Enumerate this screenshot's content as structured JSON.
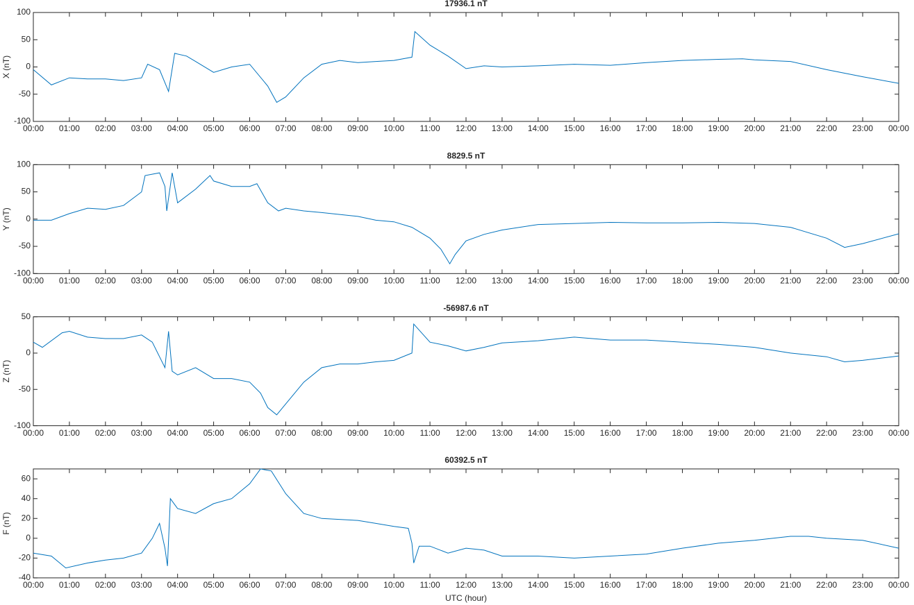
{
  "chart_data": [
    {
      "type": "line",
      "title": "17936.1 nT",
      "ylabel": "X (nT)",
      "color": "#0072bd",
      "x": [
        0,
        0.5,
        1,
        1.5,
        2,
        2.5,
        3,
        3.17,
        3.5,
        3.75,
        3.92,
        4.25,
        4.5,
        5,
        5.5,
        6,
        6.5,
        6.75,
        7,
        7.5,
        8,
        8.5,
        9,
        9.5,
        10,
        10.5,
        10.58,
        11,
        11.5,
        12,
        12.5,
        13,
        14,
        15,
        16,
        17,
        18,
        19,
        19.67,
        20,
        21,
        22,
        23,
        24
      ],
      "values": [
        -5,
        -33,
        -20,
        -22,
        -22,
        -25,
        -20,
        5,
        -5,
        -45,
        25,
        20,
        10,
        -10,
        0,
        5,
        -35,
        -65,
        -55,
        -20,
        5,
        12,
        8,
        10,
        12,
        18,
        65,
        40,
        20,
        -3,
        2,
        0,
        2,
        5,
        3,
        8,
        12,
        14,
        15,
        13,
        10,
        -5,
        -18,
        -30
      ],
      "xlim": [
        0,
        24
      ],
      "ylim": [
        -100,
        100
      ],
      "yticks": [
        -100,
        -50,
        0,
        50,
        100
      ],
      "xticks": [
        {
          "value": 0,
          "label": "00:00"
        },
        {
          "value": 1,
          "label": "01:00"
        },
        {
          "value": 2,
          "label": "02:00"
        },
        {
          "value": 3,
          "label": "03:00"
        },
        {
          "value": 4,
          "label": "04:00"
        },
        {
          "value": 5,
          "label": "05:00"
        },
        {
          "value": 6,
          "label": "06:00"
        },
        {
          "value": 7,
          "label": "07:00"
        },
        {
          "value": 8,
          "label": "08:00"
        },
        {
          "value": 9,
          "label": "09:00"
        },
        {
          "value": 10,
          "label": "10:00"
        },
        {
          "value": 11,
          "label": "11:00"
        },
        {
          "value": 12,
          "label": "12:00"
        },
        {
          "value": 13,
          "label": "13:00"
        },
        {
          "value": 14,
          "label": "14:00"
        },
        {
          "value": 15,
          "label": "15:00"
        },
        {
          "value": 16,
          "label": "16:00"
        },
        {
          "value": 17,
          "label": "17:00"
        },
        {
          "value": 18,
          "label": "18:00"
        },
        {
          "value": 19,
          "label": "19:00"
        },
        {
          "value": 20,
          "label": "20:00"
        },
        {
          "value": 21,
          "label": "21:00"
        },
        {
          "value": 22,
          "label": "22:00"
        },
        {
          "value": 23,
          "label": "23:00"
        },
        {
          "value": 24,
          "label": "00:00"
        }
      ]
    },
    {
      "type": "line",
      "title": "8829.5 nT",
      "ylabel": "Y (nT)",
      "color": "#0072bd",
      "x": [
        0,
        0.5,
        1,
        1.5,
        2,
        2.5,
        3,
        3.1,
        3.5,
        3.65,
        3.7,
        3.85,
        4,
        4.5,
        4.9,
        5,
        5.5,
        6,
        6.2,
        6.5,
        6.8,
        7,
        7.5,
        8,
        9,
        9.5,
        10,
        10.5,
        11,
        11.3,
        11.55,
        11.7,
        12,
        12.5,
        13,
        14,
        15,
        16,
        17,
        18,
        19,
        20,
        21,
        22,
        22.5,
        23,
        24
      ],
      "values": [
        -2,
        -2,
        10,
        20,
        18,
        25,
        50,
        80,
        85,
        60,
        15,
        85,
        30,
        55,
        80,
        70,
        60,
        60,
        65,
        30,
        15,
        20,
        15,
        12,
        5,
        -2,
        -5,
        -15,
        -35,
        -55,
        -82,
        -65,
        -40,
        -28,
        -20,
        -10,
        -8,
        -6,
        -7,
        -7,
        -6,
        -8,
        -15,
        -35,
        -52,
        -45,
        -27
      ],
      "xlim": [
        0,
        24
      ],
      "ylim": [
        -100,
        100
      ],
      "yticks": [
        -100,
        -50,
        0,
        50,
        100
      ],
      "xticks": [
        {
          "value": 0,
          "label": "00:00"
        },
        {
          "value": 1,
          "label": "01:00"
        },
        {
          "value": 2,
          "label": "02:00"
        },
        {
          "value": 3,
          "label": "03:00"
        },
        {
          "value": 4,
          "label": "04:00"
        },
        {
          "value": 5,
          "label": "05:00"
        },
        {
          "value": 6,
          "label": "06:00"
        },
        {
          "value": 7,
          "label": "07:00"
        },
        {
          "value": 8,
          "label": "08:00"
        },
        {
          "value": 9,
          "label": "09:00"
        },
        {
          "value": 10,
          "label": "10:00"
        },
        {
          "value": 11,
          "label": "11:00"
        },
        {
          "value": 12,
          "label": "12:00"
        },
        {
          "value": 13,
          "label": "13:00"
        },
        {
          "value": 14,
          "label": "14:00"
        },
        {
          "value": 15,
          "label": "15:00"
        },
        {
          "value": 16,
          "label": "16:00"
        },
        {
          "value": 17,
          "label": "17:00"
        },
        {
          "value": 18,
          "label": "18:00"
        },
        {
          "value": 19,
          "label": "19:00"
        },
        {
          "value": 20,
          "label": "20:00"
        },
        {
          "value": 21,
          "label": "21:00"
        },
        {
          "value": 22,
          "label": "22:00"
        },
        {
          "value": 23,
          "label": "23:00"
        },
        {
          "value": 24,
          "label": "00:00"
        }
      ]
    },
    {
      "type": "line",
      "title": "-56987.6 nT",
      "ylabel": "Z (nT)",
      "color": "#0072bd",
      "x": [
        0,
        0.25,
        0.8,
        1,
        1.5,
        2,
        2.5,
        3,
        3.3,
        3.5,
        3.65,
        3.75,
        3.85,
        4,
        4.5,
        5,
        5.5,
        6,
        6.3,
        6.5,
        6.75,
        7,
        7.5,
        8,
        8.5,
        9,
        9.5,
        10,
        10.5,
        10.55,
        11,
        11.5,
        12,
        12.5,
        13,
        14,
        15,
        16,
        17,
        18,
        19,
        20,
        21,
        22,
        22.5,
        23,
        24
      ],
      "values": [
        15,
        8,
        28,
        30,
        22,
        20,
        20,
        25,
        15,
        -5,
        -20,
        30,
        -25,
        -30,
        -20,
        -35,
        -35,
        -40,
        -55,
        -75,
        -85,
        -70,
        -40,
        -20,
        -15,
        -15,
        -12,
        -10,
        0,
        40,
        15,
        10,
        3,
        8,
        14,
        17,
        22,
        18,
        18,
        15,
        12,
        8,
        0,
        -5,
        -12,
        -10,
        -4
      ],
      "xlim": [
        0,
        24
      ],
      "ylim": [
        -100,
        50
      ],
      "yticks": [
        -100,
        -50,
        0,
        50
      ],
      "xticks": [
        {
          "value": 0,
          "label": "00:00"
        },
        {
          "value": 1,
          "label": "01:00"
        },
        {
          "value": 2,
          "label": "02:00"
        },
        {
          "value": 3,
          "label": "03:00"
        },
        {
          "value": 4,
          "label": "04:00"
        },
        {
          "value": 5,
          "label": "05:00"
        },
        {
          "value": 6,
          "label": "06:00"
        },
        {
          "value": 7,
          "label": "07:00"
        },
        {
          "value": 8,
          "label": "08:00"
        },
        {
          "value": 9,
          "label": "09:00"
        },
        {
          "value": 10,
          "label": "10:00"
        },
        {
          "value": 11,
          "label": "11:00"
        },
        {
          "value": 12,
          "label": "12:00"
        },
        {
          "value": 13,
          "label": "13:00"
        },
        {
          "value": 14,
          "label": "14:00"
        },
        {
          "value": 15,
          "label": "15:00"
        },
        {
          "value": 16,
          "label": "16:00"
        },
        {
          "value": 17,
          "label": "17:00"
        },
        {
          "value": 18,
          "label": "18:00"
        },
        {
          "value": 19,
          "label": "19:00"
        },
        {
          "value": 20,
          "label": "20:00"
        },
        {
          "value": 21,
          "label": "21:00"
        },
        {
          "value": 22,
          "label": "22:00"
        },
        {
          "value": 23,
          "label": "23:00"
        },
        {
          "value": 24,
          "label": "00:00"
        }
      ]
    },
    {
      "type": "line",
      "title": "60392.5 nT",
      "ylabel": "F (nT)",
      "xlabel": "UTC (hour)",
      "color": "#0072bd",
      "x": [
        0,
        0.5,
        0.9,
        1.5,
        2,
        2.5,
        3,
        3.3,
        3.5,
        3.65,
        3.72,
        3.8,
        4,
        4.5,
        5,
        5.5,
        6,
        6.3,
        6.6,
        7,
        7.5,
        8,
        9,
        9.5,
        10,
        10.4,
        10.5,
        10.55,
        10.7,
        11,
        11.5,
        12,
        12.5,
        13,
        14,
        15,
        16,
        17,
        18,
        19,
        20,
        21,
        21.5,
        22,
        23,
        24
      ],
      "values": [
        -15,
        -18,
        -30,
        -25,
        -22,
        -20,
        -15,
        0,
        15,
        -10,
        -28,
        40,
        30,
        25,
        35,
        40,
        55,
        70,
        68,
        45,
        25,
        20,
        18,
        15,
        12,
        10,
        -5,
        -25,
        -8,
        -8,
        -15,
        -10,
        -12,
        -18,
        -18,
        -20,
        -18,
        -16,
        -10,
        -5,
        -2,
        2,
        2,
        0,
        -2,
        -10
      ],
      "xlim": [
        0,
        24
      ],
      "ylim": [
        -40,
        70
      ],
      "yticks": [
        -40,
        -20,
        0,
        20,
        40,
        60
      ],
      "xticks": [
        {
          "value": 0,
          "label": "00:00"
        },
        {
          "value": 1,
          "label": "01:00"
        },
        {
          "value": 2,
          "label": "02:00"
        },
        {
          "value": 3,
          "label": "03:00"
        },
        {
          "value": 4,
          "label": "04:00"
        },
        {
          "value": 5,
          "label": "05:00"
        },
        {
          "value": 6,
          "label": "06:00"
        },
        {
          "value": 7,
          "label": "07:00"
        },
        {
          "value": 8,
          "label": "08:00"
        },
        {
          "value": 9,
          "label": "09:00"
        },
        {
          "value": 10,
          "label": "10:00"
        },
        {
          "value": 11,
          "label": "11:00"
        },
        {
          "value": 12,
          "label": "12:00"
        },
        {
          "value": 13,
          "label": "13:00"
        },
        {
          "value": 14,
          "label": "14:00"
        },
        {
          "value": 15,
          "label": "15:00"
        },
        {
          "value": 16,
          "label": "16:00"
        },
        {
          "value": 17,
          "label": "17:00"
        },
        {
          "value": 18,
          "label": "18:00"
        },
        {
          "value": 19,
          "label": "19:00"
        },
        {
          "value": 20,
          "label": "20:00"
        },
        {
          "value": 21,
          "label": "21:00"
        },
        {
          "value": 22,
          "label": "22:00"
        },
        {
          "value": 23,
          "label": "23:00"
        },
        {
          "value": 24,
          "label": "00:00"
        }
      ]
    }
  ]
}
